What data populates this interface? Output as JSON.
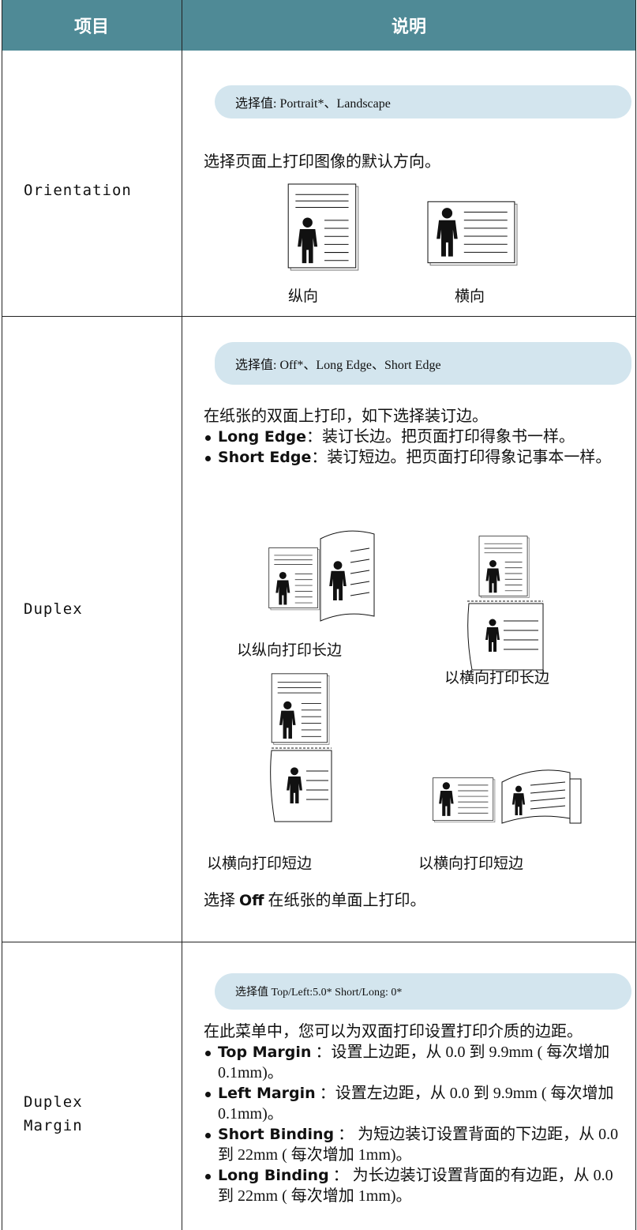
{
  "table": {
    "header": [
      "项目",
      "说明"
    ],
    "rows": [
      {
        "item": [
          "Orientation"
        ],
        "options": "选择值: Portrait*、Landscape",
        "description": "选择页面上打印图像的默认方向。",
        "figures": [
          "纵向",
          "横向"
        ]
      },
      {
        "item": [
          "Duplex"
        ],
        "options": "选择值: Off*、Long Edge、Short Edge",
        "description": "在纸张的双面上打印，如下选择装订边。",
        "bullets": [
          {
            "term": "Long Edge",
            "text": "：装订长边。把页面打印得象书一样。"
          },
          {
            "term": "Short Edge",
            "text": "：装订短边。把页面打印得象记事本一样。"
          }
        ],
        "figures": [
          "以纵向打印长边",
          "以横向打印长边",
          "以横向打印短边",
          "以横向打印短边"
        ],
        "note": {
          "before": "选择",
          "term": "Off",
          "after": "在纸张的单面上打印。"
        }
      },
      {
        "item": [
          "Duplex",
          "Margin"
        ],
        "options": "选择值 Top/Left:5.0* Short/Long: 0*",
        "description": "在此菜单中，您可以为双面打印设置打印介质的边距。",
        "bullets": [
          {
            "term": "Top Margin",
            "text": " ：设置上边距，从 0.0 到 9.9mm ( 每次增加 0.1mm)。"
          },
          {
            "term": "Left Margin",
            "text": " ：设置左边距，从 0.0 到 9.9mm ( 每次增加 0.1mm)。"
          },
          {
            "term": "Short Binding",
            "text": " ： 为短边装订设置背面的下边距，从 0.0 到 22mm ( 每次增加 1mm)。"
          },
          {
            "term": "Long Binding",
            "text": " ： 为长边装订设置背面的有边距，从 0.0 到 22mm ( 每次增加 1mm)。"
          }
        ]
      }
    ]
  }
}
